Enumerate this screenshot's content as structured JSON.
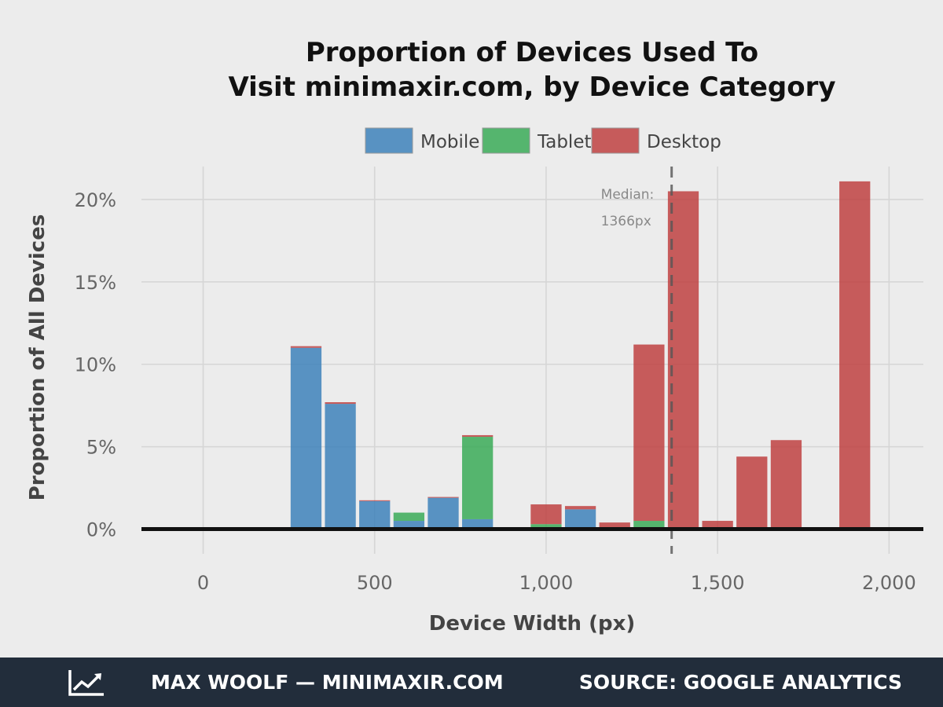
{
  "chart_data": {
    "type": "bar",
    "stacked": true,
    "title": [
      "Proportion of Devices Used To",
      "Visit minimaxir.com, by Device Category"
    ],
    "xlabel": "Device Width (px)",
    "ylabel": "Proportion of All Devices",
    "xlim": [
      -180,
      2100
    ],
    "ylim": [
      -1.5,
      22
    ],
    "x_ticks": [
      0,
      500,
      1000,
      1500,
      2000
    ],
    "x_tick_labels": [
      "0",
      "500",
      "1,000",
      "1,500",
      "2,000"
    ],
    "y_ticks": [
      0,
      5,
      10,
      15,
      20
    ],
    "y_tick_labels": [
      "0%",
      "5%",
      "10%",
      "15%",
      "20%"
    ],
    "bar_width": 90,
    "grid": true,
    "legend_position": "top-center",
    "x": [
      300,
      400,
      500,
      600,
      700,
      800,
      1000,
      1100,
      1200,
      1300,
      1400,
      1500,
      1600,
      1700,
      1900
    ],
    "series": [
      {
        "name": "Mobile",
        "color": "#377eb8",
        "values": [
          11.0,
          7.6,
          1.7,
          0.5,
          1.9,
          0.6,
          0.0,
          1.2,
          0.0,
          0.0,
          0.0,
          0.0,
          0.0,
          0.0,
          0.0
        ]
      },
      {
        "name": "Tablet",
        "color": "#33a852",
        "values": [
          0.0,
          0.0,
          0.0,
          0.5,
          0.0,
          5.0,
          0.3,
          0.0,
          0.0,
          0.5,
          0.0,
          0.0,
          0.0,
          0.0,
          0.0
        ]
      },
      {
        "name": "Desktop",
        "color": "#bd3a3a",
        "values": [
          0.1,
          0.1,
          0.05,
          0.0,
          0.05,
          0.1,
          1.2,
          0.2,
          0.4,
          10.7,
          20.5,
          0.5,
          4.4,
          5.4,
          21.1
        ]
      }
    ],
    "median_line": {
      "x": 1366,
      "label_lines": [
        "Median:",
        "1366px"
      ]
    }
  },
  "footer": {
    "left_text": "MAX WOOLF — MINIMAXIR.COM",
    "right_text": "SOURCE: GOOGLE ANALYTICS",
    "icon": "trend-line-icon"
  }
}
